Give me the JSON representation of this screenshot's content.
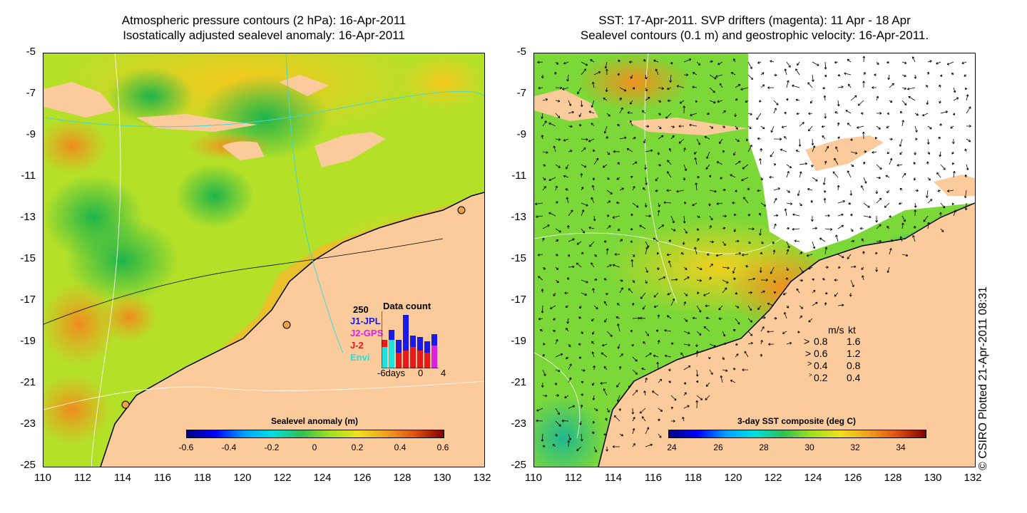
{
  "left_panel": {
    "title_line1": "Atmospheric pressure contours (2 hPa): 16-Apr-2011",
    "title_line2": "Isostatically adjusted sealevel anomaly: 16-Apr-2011",
    "colorbar_label": "Sealevel anomaly (m)",
    "colorbar_ticks": [
      "-0.6",
      "-0.4",
      "-0.2",
      "0",
      "0.2",
      "0.4",
      "0.6"
    ],
    "inset": {
      "title": "Data count",
      "ymax_label": "250",
      "legend": [
        {
          "label": "J1-JPL",
          "color": "#1a1ae6"
        },
        {
          "label": "J2-GPS",
          "color": "#e020e0"
        },
        {
          "label": "J-2",
          "color": "#e61a1a"
        },
        {
          "label": "Envi",
          "color": "#20e0e0"
        }
      ],
      "x_labels": [
        "-6days",
        "0",
        "4"
      ]
    }
  },
  "right_panel": {
    "title_line1": "SST: 17-Apr-2011. SVP drifters (magenta): 11 Apr - 18 Apr",
    "title_line2": "Sealevel contours (0.1 m) and geostrophic velocity: 16-Apr-2011.",
    "colorbar_label": "3-day SST composite (deg C)",
    "colorbar_ticks": [
      "24",
      "26",
      "28",
      "30",
      "32",
      "34"
    ],
    "velocity_legend": {
      "header_ms": "m/s",
      "header_kt": "kt",
      "rows": [
        {
          "ms": "0.8",
          "kt": "1.6"
        },
        {
          "ms": "0.6",
          "kt": "1.2"
        },
        {
          "ms": "0.4",
          "kt": "0.8"
        },
        {
          "ms": "0.2",
          "kt": "0.4"
        }
      ]
    }
  },
  "axes": {
    "y_ticks": [
      "-5",
      "-7",
      "-9",
      "-11",
      "-13",
      "-15",
      "-17",
      "-19",
      "-21",
      "-23",
      "-25"
    ],
    "x_ticks": [
      "110",
      "112",
      "114",
      "116",
      "118",
      "120",
      "122",
      "124",
      "126",
      "128",
      "130",
      "132"
    ]
  },
  "copyright": "© CSIRO Plotted 21-Apr-2011 08:31",
  "colors": {
    "land": "#fccb9c",
    "ocean_left": "#a8e028",
    "ocean_right": "#74d838"
  }
}
